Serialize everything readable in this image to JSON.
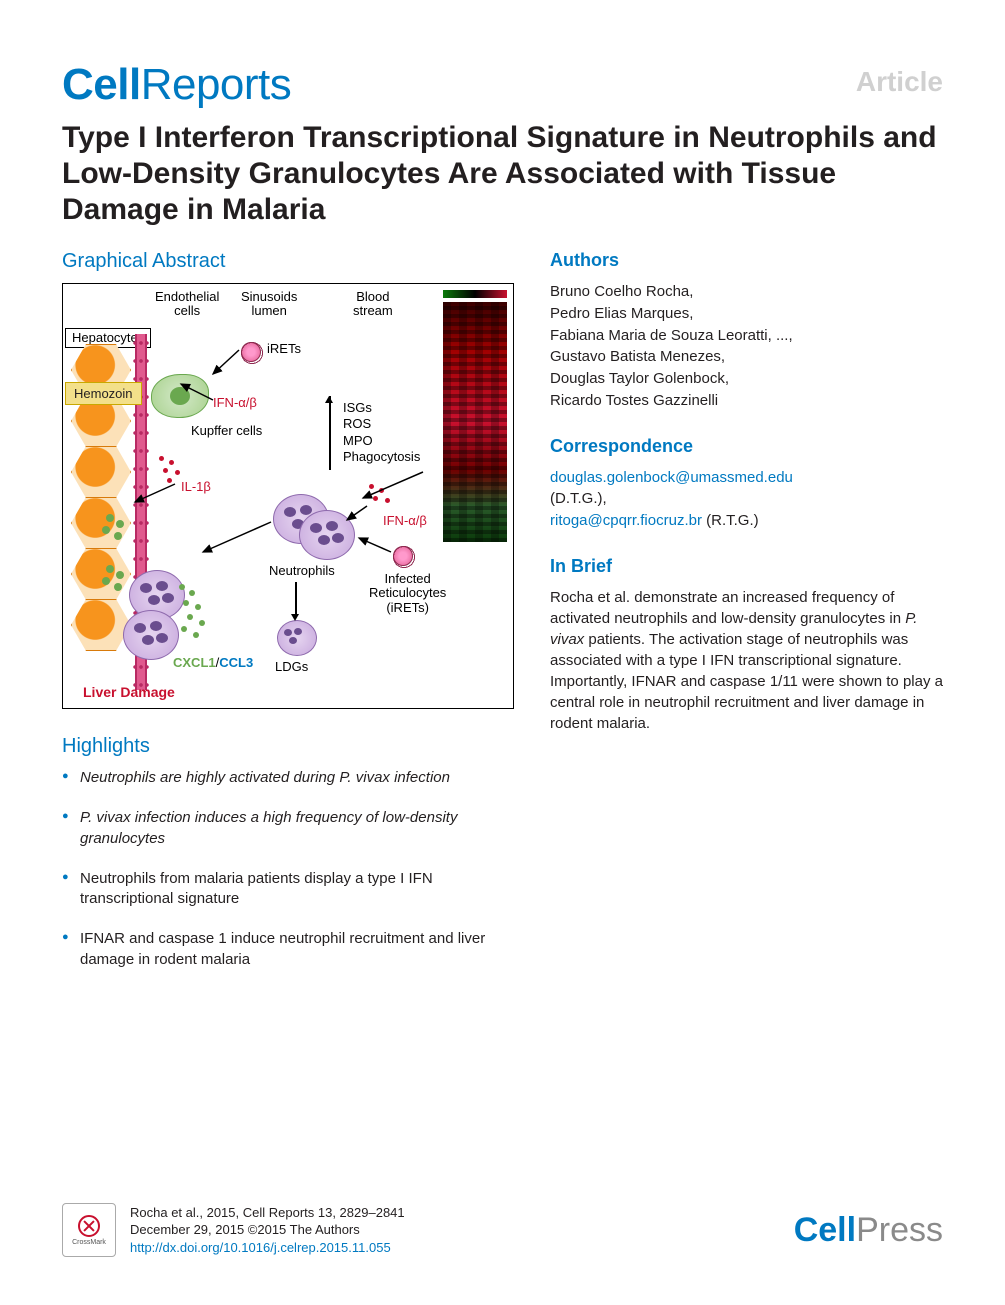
{
  "journal": {
    "name_bold": "Cell",
    "name_light": "Reports"
  },
  "article_type": "Article",
  "title": "Type I Interferon Transcriptional Signature in Neutrophils and Low-Density Granulocytes Are Associated with Tissue Damage in Malaria",
  "sections": {
    "graphical_abstract": "Graphical Abstract",
    "highlights": "Highlights",
    "authors": "Authors",
    "correspondence": "Correspondence",
    "in_brief": "In Brief"
  },
  "graphical_abstract": {
    "top_labels": {
      "endothelial": "Endothelial\ncells",
      "sinusoids": "Sinusoids\nlumen",
      "blood": "Blood\nstream"
    },
    "hepatocytes": "Hepatocytes",
    "hemozoin": "Hemozoin",
    "irets_label": "iRETs",
    "ifn_ab1": "IFN-α/β",
    "ifn_ab2": "IFN-α/β",
    "kupffer": "Kupffer cells",
    "il1b": "IL-1β",
    "blood_list": "ISGs\nROS\nMPO\nPhagocytosis",
    "neutrophils": "Neutrophils",
    "infected_ret": "Infected\nReticulocytes\n(iRETs)",
    "ldgs": "LDGs",
    "cxcl": "CXCL1",
    "ccl": "CCL3",
    "liver_damage": "Liver Damage",
    "colors": {
      "accent_blue": "#0079c1",
      "accent_red": "#c8102e",
      "hepato_fill": "#fce1b8",
      "hepato_core": "#f7941d",
      "sinusoid": "#e05a8e",
      "kupffer": "#a9d18e",
      "neutrophil": "#c7a8dd",
      "green_dot": "#6aa84f"
    }
  },
  "highlights": [
    "Neutrophils are highly activated during P. vivax infection",
    "P. vivax infection induces a high frequency of low-density granulocytes",
    "Neutrophils from malaria patients display a type I IFN transcriptional signature",
    "IFNAR and caspase 1 induce neutrophil recruitment and liver damage in rodent malaria"
  ],
  "authors": [
    "Bruno Coelho Rocha,",
    "Pedro Elias Marques,",
    "Fabiana Maria de Souza Leoratti, ...,",
    "Gustavo Batista Menezes,",
    "Douglas Taylor Golenbock,",
    "Ricardo Tostes Gazzinelli"
  ],
  "correspondence": {
    "email1": "douglas.golenbock@umassmed.edu",
    "suffix1": "(D.T.G.),",
    "email2": "ritoga@cpqrr.fiocruz.br",
    "suffix2": " (R.T.G.)"
  },
  "in_brief": "Rocha et al. demonstrate an increased frequency of activated neutrophils and low-density granulocytes in P. vivax patients. The activation stage of neutrophils was associated with a type I IFN transcriptional signature. Importantly, IFNAR and caspase 1/11 were shown to play a central role in neutrophil recruitment and liver damage in rodent malaria.",
  "footer": {
    "crossmark": "CrossMark",
    "citation_line1": "Rocha et al., 2015, Cell Reports 13, 2829–2841",
    "citation_line2": "December 29, 2015 ©2015 The Authors",
    "doi": "http://dx.doi.org/10.1016/j.celrep.2015.11.055",
    "publisher_bold": "Cell",
    "publisher_light": "Press"
  }
}
